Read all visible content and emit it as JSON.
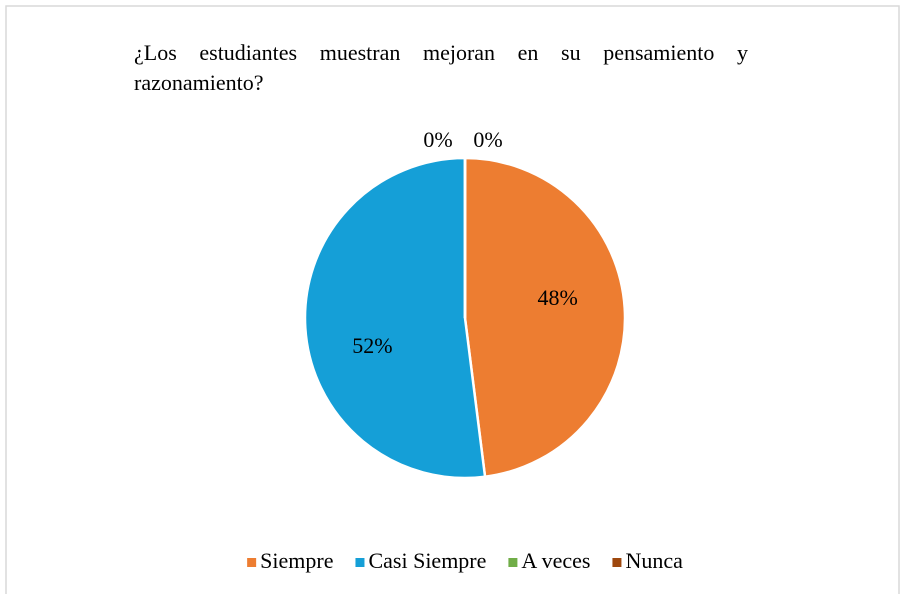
{
  "chart_data": {
    "type": "pie",
    "title": "¿Los estudiantes muestran mejoran en su pensamiento y razonamiento?",
    "categories": [
      "Siempre",
      "Casi Siempre",
      "A veces",
      "Nunca"
    ],
    "values": [
      48,
      52,
      0,
      0
    ],
    "value_labels": [
      "48%",
      "52%",
      "0%",
      "0%"
    ],
    "colors": [
      "#ED7D31",
      "#159FD7",
      "#70AD47",
      "#9E480E"
    ],
    "legend": "bottom"
  }
}
